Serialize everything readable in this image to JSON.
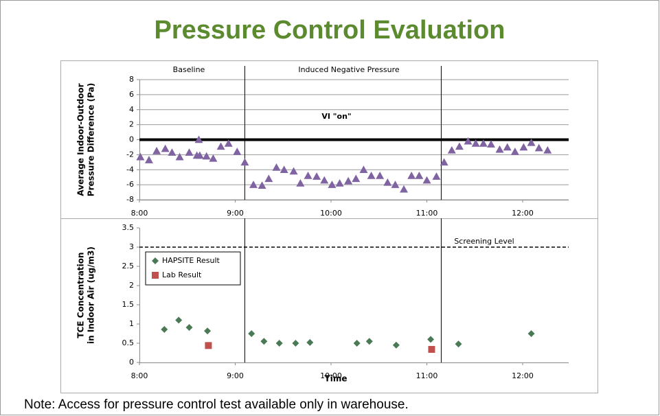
{
  "title": "Pressure Control Evaluation",
  "note": "Note:  Access for pressure control test available only in warehouse.",
  "chart_data": [
    {
      "type": "scatter",
      "ylabel": [
        "Average Indoor-Outdoor",
        "Pressure Difference (Pa)"
      ],
      "annotations": [
        "Baseline",
        "Induced Negative Pressure",
        "VI \"on\""
      ],
      "xlim": [
        8,
        12.48
      ],
      "xticks": [
        {
          "value": 8,
          "label": "8:00"
        },
        {
          "value": 9,
          "label": "9:00"
        },
        {
          "value": 10,
          "label": "10:00"
        },
        {
          "value": 11,
          "label": "11:00"
        },
        {
          "value": 12,
          "label": "12:00"
        }
      ],
      "ylim": [
        -8,
        8
      ],
      "yticks": [
        -8,
        -6,
        -4,
        -2,
        0,
        2,
        4,
        6,
        8
      ],
      "grid": true,
      "vlines": [
        9.1,
        11.15
      ],
      "series": [
        {
          "name": null,
          "color": "#8064a2",
          "marker": "triangle",
          "x": [
            8.01,
            8.1,
            8.18,
            8.27,
            8.34,
            8.42,
            8.52,
            8.6,
            8.62,
            8.63,
            8.7,
            8.77,
            8.85,
            8.93,
            9.02,
            9.1,
            9.19,
            9.28,
            9.35,
            9.43,
            9.51,
            9.61,
            9.68,
            9.76,
            9.85,
            9.93,
            10.01,
            10.09,
            10.18,
            10.26,
            10.34,
            10.42,
            10.51,
            10.59,
            10.67,
            10.76,
            10.84,
            10.92,
            11.0,
            11.1,
            11.18,
            11.26,
            11.34,
            11.43,
            11.51,
            11.59,
            11.67,
            11.76,
            11.84,
            11.92,
            12.01,
            12.09,
            12.17,
            12.26
          ],
          "values": [
            -2.3,
            -2.7,
            -1.5,
            -1.2,
            -1.7,
            -2.3,
            -1.7,
            -2.1,
            0.0,
            -2.1,
            -2.2,
            -2.5,
            -0.9,
            -0.5,
            -1.6,
            -3.0,
            -6.0,
            -6.1,
            -5.2,
            -3.7,
            -4.0,
            -4.2,
            -5.8,
            -4.8,
            -4.9,
            -5.4,
            -6.0,
            -5.8,
            -5.5,
            -5.2,
            -4.0,
            -4.8,
            -4.8,
            -5.7,
            -6.0,
            -6.6,
            -4.8,
            -4.8,
            -5.4,
            -4.9,
            -3.0,
            -1.4,
            -0.9,
            -0.2,
            -0.5,
            -0.5,
            -0.6,
            -1.3,
            -1.0,
            -1.6,
            -1.0,
            -0.4,
            -1.1,
            -1.4
          ]
        }
      ]
    },
    {
      "type": "scatter",
      "ylabel": [
        "TCE Concentration",
        "in Indoor Air  (ug/m3)"
      ],
      "xlabel": "Time",
      "annotations": [
        "Screening Level"
      ],
      "xlim": [
        8,
        12.48
      ],
      "xticks": [
        {
          "value": 8,
          "label": "8:00"
        },
        {
          "value": 9,
          "label": "9:00"
        },
        {
          "value": 10,
          "label": "10:00"
        },
        {
          "value": 11,
          "label": "11:00"
        },
        {
          "value": 12,
          "label": "12:00"
        }
      ],
      "ylim": [
        0,
        3.5
      ],
      "yticks": [
        0,
        0.5,
        1,
        1.5,
        2,
        2.5,
        3,
        3.5
      ],
      "grid": false,
      "vlines": [
        9.1,
        11.15
      ],
      "hlines": [
        3
      ],
      "legend": "upper left",
      "series": [
        {
          "name": "HAPSITE Result",
          "color": "#4a7a55",
          "marker": "diamond",
          "x": [
            8.26,
            8.41,
            8.52,
            8.71,
            9.17,
            9.3,
            9.46,
            9.63,
            9.78,
            10.27,
            10.4,
            10.68,
            11.04,
            11.33,
            12.09
          ],
          "values": [
            0.86,
            1.1,
            0.91,
            0.82,
            0.75,
            0.55,
            0.5,
            0.5,
            0.52,
            0.5,
            0.55,
            0.45,
            0.6,
            0.48,
            0.75
          ]
        },
        {
          "name": "Lab Result",
          "color": "#c0504d",
          "marker": "square",
          "x": [
            8.72,
            11.05
          ],
          "values": [
            0.44,
            0.34
          ]
        }
      ]
    }
  ]
}
